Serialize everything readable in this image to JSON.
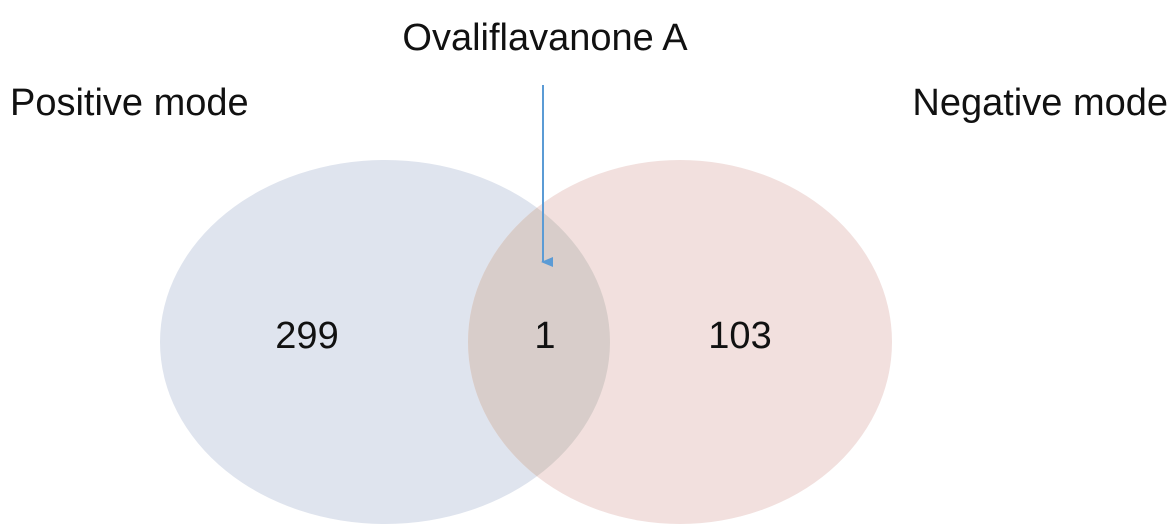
{
  "sets": [
    {
      "label": "Positive mode",
      "count": "299"
    },
    {
      "label": "Negative mode",
      "count": "103"
    }
  ],
  "intersection": {
    "count": "1",
    "annotation": "Ovaliflavanone A"
  }
}
